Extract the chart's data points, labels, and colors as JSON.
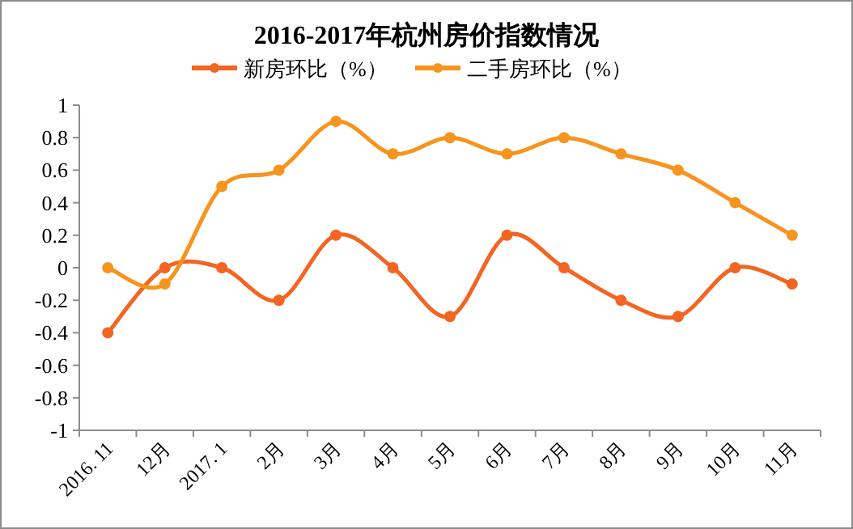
{
  "chart_data": {
    "type": "line",
    "title": "2016-2017年杭州房价指数情况",
    "categories": [
      "2016. 11",
      "12月",
      "2017. 1",
      "2月",
      "3月",
      "4月",
      "5月",
      "6月",
      "7月",
      "8月",
      "9月",
      "10月",
      "11月"
    ],
    "series": [
      {
        "name": "新房环比（%）",
        "color": "#f26522",
        "values": [
          -0.4,
          0,
          0,
          -0.2,
          0.2,
          0,
          -0.3,
          0.2,
          0,
          -0.2,
          -0.3,
          0,
          -0.1
        ]
      },
      {
        "name": "二手房环比（%）",
        "color": "#f7941d",
        "values": [
          0,
          -0.1,
          0.5,
          0.6,
          0.9,
          0.7,
          0.8,
          0.7,
          0.8,
          0.7,
          0.6,
          0.4,
          0.2
        ]
      }
    ],
    "ylim": [
      -1,
      1
    ],
    "yticks": [
      -1,
      -0.8,
      -0.6,
      -0.4,
      -0.2,
      0,
      0.2,
      0.4,
      0.6,
      0.8,
      1
    ],
    "legend": "top",
    "marker": "circle",
    "line_style": "solid",
    "grid": false
  }
}
